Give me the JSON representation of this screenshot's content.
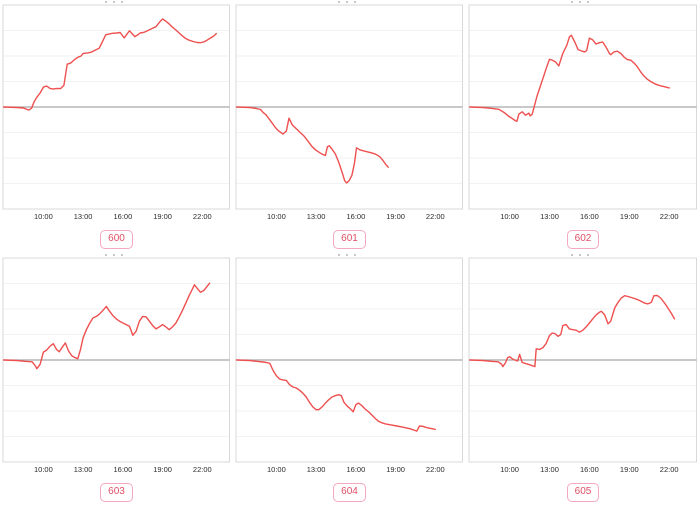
{
  "page": {
    "background": "#ffffff"
  },
  "style": {
    "line_color": "#ee5050",
    "zero_line_color": "#a6a6a6",
    "grid_color": "#f2f2f2",
    "plot_border_color": "#d9d9d9",
    "tick_label_color": "#2b2b2b",
    "badge_text_color": "#e04f66",
    "badge_border_color": "#f5a9be",
    "badge_bg_color": "#fffefe"
  },
  "chart_data": [
    {
      "type": "line",
      "label": "600",
      "title": "",
      "legend": "none",
      "grid": "horizontal",
      "x_ticks": [
        "10:00",
        "13:00",
        "16:00",
        "19:00",
        "22:00"
      ],
      "x_tick_hours": [
        10,
        13,
        16,
        19,
        22
      ],
      "xlim_hours": [
        6.95,
        24.05
      ],
      "ylim": [
        -4,
        4
      ],
      "zero_baseline": 0,
      "x_hours": [
        7.0,
        8,
        8.5,
        8.9,
        9.1,
        9.3,
        9.5,
        9.75,
        10,
        10.25,
        10.5,
        10.75,
        11,
        11.3,
        11.55,
        11.8,
        12.05,
        12.35,
        12.6,
        12.85,
        13,
        13.35,
        13.6,
        13.95,
        14.2,
        14.45,
        14.7,
        14.95,
        15.2,
        15.55,
        15.8,
        16.1,
        16.3,
        16.5,
        16.7,
        16.9,
        17.1,
        17.3,
        17.6,
        17.9,
        18.2,
        18.5,
        18.8,
        19,
        19.2,
        19.45,
        19.7,
        20,
        20.35,
        20.7,
        21,
        21.3,
        21.6,
        21.85,
        22.1,
        22.35,
        22.6,
        22.85,
        23.05
      ],
      "y": [
        0,
        -0.02,
        -0.04,
        -0.12,
        -0.05,
        0.2,
        0.38,
        0.55,
        0.78,
        0.82,
        0.73,
        0.7,
        0.73,
        0.72,
        0.85,
        1.68,
        1.72,
        1.86,
        1.95,
        2.0,
        2.1,
        2.12,
        2.15,
        2.24,
        2.3,
        2.55,
        2.83,
        2.86,
        2.89,
        2.9,
        2.92,
        2.71,
        2.85,
        2.99,
        2.88,
        2.76,
        2.82,
        2.9,
        2.93,
        3.0,
        3.08,
        3.15,
        3.35,
        3.45,
        3.38,
        3.28,
        3.15,
        3.02,
        2.85,
        2.7,
        2.62,
        2.57,
        2.53,
        2.52,
        2.55,
        2.62,
        2.7,
        2.78,
        2.88
      ]
    },
    {
      "type": "line",
      "label": "601",
      "title": "",
      "legend": "none",
      "grid": "horizontal",
      "x_ticks": [
        "10:00",
        "13:00",
        "16:00",
        "19:00",
        "22:00"
      ],
      "x_tick_hours": [
        10,
        13,
        16,
        19,
        22
      ],
      "xlim_hours": [
        6.95,
        24.05
      ],
      "ylim": [
        -4,
        4
      ],
      "zero_baseline": 0,
      "x_hours": [
        7.0,
        8,
        8.5,
        8.8,
        9,
        9.2,
        9.5,
        9.8,
        10,
        10.2,
        10.5,
        10.75,
        10.95,
        11.2,
        11.5,
        11.8,
        12.1,
        12.4,
        12.7,
        13,
        13.2,
        13.45,
        13.7,
        13.85,
        14,
        14.2,
        14.45,
        14.7,
        14.95,
        15.15,
        15.3,
        15.5,
        15.7,
        15.9,
        16.05,
        16.3,
        16.6,
        16.9,
        17.2,
        17.5,
        17.8,
        18.05,
        18.25,
        18.45
      ],
      "y": [
        0,
        -0.02,
        -0.06,
        -0.1,
        -0.22,
        -0.3,
        -0.5,
        -0.72,
        -0.85,
        -0.95,
        -1.06,
        -0.95,
        -0.44,
        -0.7,
        -0.85,
        -1.0,
        -1.15,
        -1.35,
        -1.56,
        -1.7,
        -1.77,
        -1.85,
        -1.9,
        -1.56,
        -1.52,
        -1.65,
        -1.84,
        -2.16,
        -2.55,
        -2.88,
        -2.98,
        -2.88,
        -2.68,
        -2.2,
        -1.6,
        -1.68,
        -1.72,
        -1.76,
        -1.8,
        -1.85,
        -1.95,
        -2.1,
        -2.25,
        -2.36
      ]
    },
    {
      "type": "line",
      "label": "602",
      "title": "",
      "legend": "none",
      "grid": "horizontal",
      "x_ticks": [
        "10:00",
        "13:00",
        "16:00",
        "19:00",
        "22:00"
      ],
      "x_tick_hours": [
        10,
        13,
        16,
        19,
        22
      ],
      "xlim_hours": [
        6.95,
        24.05
      ],
      "ylim": [
        -4,
        4
      ],
      "zero_baseline": 0,
      "x_hours": [
        7.0,
        8,
        8.6,
        9.2,
        9.6,
        9.95,
        10.2,
        10.45,
        10.55,
        10.7,
        10.95,
        11.2,
        11.45,
        11.55,
        11.7,
        11.8,
        12.05,
        12.3,
        12.55,
        12.8,
        13,
        13.2,
        13.45,
        13.7,
        14,
        14.3,
        14.5,
        14.65,
        14.9,
        15.15,
        15.4,
        15.65,
        15.8,
        16,
        16.25,
        16.5,
        16.75,
        17,
        17.25,
        17.5,
        17.6,
        17.85,
        18.1,
        18.35,
        18.6,
        18.85,
        19.1,
        19.35,
        19.6,
        19.85,
        20.1,
        20.35,
        20.6,
        20.85,
        21.1,
        21.35,
        21.6,
        21.85,
        22
      ],
      "y": [
        0,
        -0.02,
        -0.05,
        -0.09,
        -0.22,
        -0.37,
        -0.45,
        -0.54,
        -0.56,
        -0.28,
        -0.19,
        -0.32,
        -0.24,
        -0.35,
        -0.28,
        -0.09,
        0.41,
        0.8,
        1.19,
        1.58,
        1.87,
        1.84,
        1.77,
        1.61,
        2.1,
        2.42,
        2.75,
        2.81,
        2.55,
        2.25,
        2.2,
        2.16,
        2.22,
        2.7,
        2.63,
        2.47,
        2.52,
        2.55,
        2.35,
        2.1,
        2.05,
        2.16,
        2.19,
        2.1,
        1.96,
        1.86,
        1.84,
        1.73,
        1.58,
        1.38,
        1.22,
        1.09,
        1.0,
        0.93,
        0.87,
        0.83,
        0.8,
        0.77,
        0.75
      ]
    },
    {
      "type": "line",
      "label": "603",
      "title": "",
      "legend": "none",
      "grid": "horizontal",
      "x_ticks": [
        "10:00",
        "13:00",
        "16:00",
        "19:00",
        "22:00"
      ],
      "x_tick_hours": [
        10,
        13,
        16,
        19,
        22
      ],
      "xlim_hours": [
        6.95,
        24.05
      ],
      "ylim": [
        -4,
        4
      ],
      "zero_baseline": 0,
      "x_hours": [
        7.0,
        8,
        8.6,
        9.15,
        9.4,
        9.5,
        9.75,
        10,
        10.25,
        10.5,
        10.75,
        11,
        11.2,
        11.4,
        11.65,
        11.9,
        12.15,
        12.4,
        12.6,
        12.8,
        13,
        13.25,
        13.5,
        13.75,
        14,
        14.25,
        14.5,
        14.75,
        15,
        15.25,
        15.5,
        15.75,
        16,
        16.25,
        16.5,
        16.75,
        17,
        17.25,
        17.5,
        17.75,
        18,
        18.25,
        18.5,
        18.75,
        19,
        19.25,
        19.5,
        19.75,
        20,
        20.25,
        20.5,
        20.75,
        21,
        21.25,
        21.4,
        21.6,
        21.85,
        22.1,
        22.35,
        22.55
      ],
      "y": [
        0,
        -0.02,
        -0.05,
        -0.07,
        -0.24,
        -0.34,
        -0.17,
        0.31,
        0.39,
        0.54,
        0.64,
        0.41,
        0.32,
        0.48,
        0.67,
        0.35,
        0.16,
        0.09,
        0.05,
        0.41,
        0.87,
        1.19,
        1.45,
        1.65,
        1.71,
        1.81,
        1.95,
        2.1,
        1.91,
        1.74,
        1.61,
        1.52,
        1.45,
        1.39,
        1.32,
        0.97,
        1.13,
        1.52,
        1.71,
        1.69,
        1.52,
        1.35,
        1.22,
        1.3,
        1.39,
        1.3,
        1.19,
        1.3,
        1.45,
        1.69,
        1.95,
        2.23,
        2.52,
        2.78,
        2.95,
        2.82,
        2.66,
        2.72,
        2.88,
        3.01
      ]
    },
    {
      "type": "line",
      "label": "604",
      "title": "",
      "legend": "none",
      "grid": "horizontal",
      "x_ticks": [
        "10:00",
        "13:00",
        "16:00",
        "19:00",
        "22:00"
      ],
      "x_tick_hours": [
        10,
        13,
        16,
        19,
        22
      ],
      "xlim_hours": [
        6.95,
        24.05
      ],
      "ylim": [
        -4,
        4
      ],
      "zero_baseline": 0,
      "x_hours": [
        7.0,
        8,
        8.5,
        9,
        9.25,
        9.5,
        9.75,
        10,
        10.25,
        10.5,
        10.75,
        11,
        11.25,
        11.5,
        11.75,
        12,
        12.25,
        12.5,
        12.75,
        13,
        13.2,
        13.45,
        13.7,
        13.95,
        14.2,
        14.45,
        14.7,
        14.9,
        15.1,
        15.35,
        15.6,
        15.8,
        16,
        16.2,
        16.45,
        16.7,
        17,
        17.25,
        17.5,
        17.7,
        17.95,
        18.2,
        18.6,
        19.1,
        19.6,
        20.1,
        20.45,
        20.6,
        20.8,
        21.05,
        21.4,
        21.8,
        22
      ],
      "y": [
        0,
        -0.02,
        -0.05,
        -0.08,
        -0.1,
        -0.13,
        -0.41,
        -0.62,
        -0.75,
        -0.78,
        -0.8,
        -0.97,
        -1.06,
        -1.1,
        -1.19,
        -1.3,
        -1.45,
        -1.66,
        -1.84,
        -1.95,
        -1.95,
        -1.84,
        -1.69,
        -1.56,
        -1.45,
        -1.4,
        -1.36,
        -1.4,
        -1.66,
        -1.81,
        -1.92,
        -2.03,
        -1.75,
        -1.69,
        -1.79,
        -1.92,
        -2.05,
        -2.18,
        -2.31,
        -2.4,
        -2.46,
        -2.5,
        -2.54,
        -2.59,
        -2.64,
        -2.7,
        -2.76,
        -2.79,
        -2.59,
        -2.6,
        -2.66,
        -2.7,
        -2.72
      ]
    },
    {
      "type": "line",
      "label": "605",
      "title": "",
      "legend": "none",
      "grid": "horizontal",
      "x_ticks": [
        "10:00",
        "13:00",
        "16:00",
        "19:00",
        "22:00"
      ],
      "x_tick_hours": [
        10,
        13,
        16,
        19,
        22
      ],
      "xlim_hours": [
        6.95,
        24.05
      ],
      "ylim": [
        -4,
        4
      ],
      "zero_baseline": 0,
      "x_hours": [
        7.0,
        8,
        8.6,
        9.15,
        9.4,
        9.5,
        9.7,
        9.85,
        10,
        10.2,
        10.4,
        10.6,
        10.75,
        10.95,
        11.15,
        11.4,
        11.65,
        11.9,
        12,
        12.25,
        12.5,
        12.75,
        13,
        13.2,
        13.4,
        13.65,
        13.85,
        14,
        14.25,
        14.5,
        14.75,
        15,
        15.25,
        15.5,
        15.75,
        16,
        16.25,
        16.5,
        16.75,
        16.9,
        17.15,
        17.4,
        17.6,
        17.9,
        18.15,
        18.4,
        18.65,
        18.9,
        19.15,
        19.4,
        19.65,
        19.9,
        20.15,
        20.4,
        20.65,
        20.85,
        21.1,
        21.35,
        21.65,
        21.9,
        22.15,
        22.4
      ],
      "y": [
        0,
        -0.02,
        -0.05,
        -0.07,
        -0.17,
        -0.26,
        -0.1,
        0.09,
        0.13,
        0.05,
        0.0,
        -0.04,
        0.22,
        -0.1,
        -0.13,
        -0.17,
        -0.21,
        -0.26,
        0.44,
        0.41,
        0.48,
        0.65,
        0.96,
        1.06,
        1.04,
        0.93,
        1.0,
        1.35,
        1.39,
        1.22,
        1.19,
        1.17,
        1.09,
        1.17,
        1.3,
        1.45,
        1.61,
        1.77,
        1.87,
        1.91,
        1.77,
        1.42,
        1.52,
        2.04,
        2.26,
        2.43,
        2.52,
        2.49,
        2.45,
        2.41,
        2.36,
        2.3,
        2.23,
        2.2,
        2.26,
        2.52,
        2.53,
        2.43,
        2.23,
        2.04,
        1.84,
        1.61
      ]
    }
  ]
}
